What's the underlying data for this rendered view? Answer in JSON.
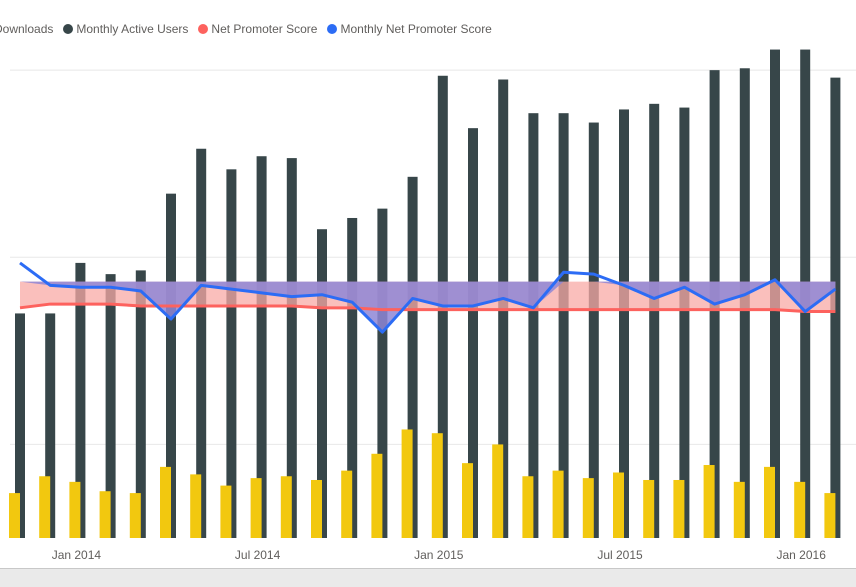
{
  "chart_data": {
    "type": "bar",
    "x_tick_labels": [
      "Jan 2014",
      "Jul 2014",
      "Jan 2015",
      "Jul 2015",
      "Jan 2016"
    ],
    "legend": [
      {
        "label": "Downloads",
        "color": "#F2C80F"
      },
      {
        "label": "Monthly Active Users",
        "color": "#374649"
      },
      {
        "label": "Net Promoter Score",
        "color": "#FD625E"
      },
      {
        "label": "Monthly Net Promoter Score",
        "color": "#2C6CF5"
      }
    ],
    "grid": true,
    "y_axis_visible": false,
    "band_colors": {
      "above": "#8E86D6",
      "below": "#F8A9A6"
    },
    "series": [
      {
        "name": "Monthly Active Users",
        "values": [
          1.2,
          1.2,
          1.47,
          1.41,
          1.43,
          1.84,
          2.08,
          1.97,
          2.04,
          2.03,
          1.65,
          1.71,
          1.76,
          1.93,
          2.47,
          2.19,
          2.45,
          2.27,
          2.27,
          2.22,
          2.29,
          2.32,
          2.3,
          2.5,
          2.51,
          2.61,
          2.61,
          2.46
        ]
      },
      {
        "name": "Downloads",
        "values": [
          0.24,
          0.33,
          0.3,
          0.25,
          0.24,
          0.38,
          0.34,
          0.28,
          0.32,
          0.33,
          0.31,
          0.36,
          0.45,
          0.58,
          0.56,
          0.4,
          0.5,
          0.33,
          0.36,
          0.32,
          0.35,
          0.31,
          0.31,
          0.39,
          0.3,
          0.38,
          0.3,
          0.24
        ]
      },
      {
        "name": "Net Promoter Score",
        "values": [
          1.23,
          1.25,
          1.25,
          1.25,
          1.24,
          1.24,
          1.24,
          1.24,
          1.24,
          1.24,
          1.23,
          1.23,
          1.22,
          1.22,
          1.22,
          1.22,
          1.22,
          1.22,
          1.22,
          1.22,
          1.22,
          1.22,
          1.22,
          1.22,
          1.22,
          1.22,
          1.21,
          1.21
        ]
      },
      {
        "name": "Monthly Net Promoter Score",
        "values": [
          1.47,
          1.35,
          1.34,
          1.34,
          1.32,
          1.17,
          1.35,
          1.33,
          1.31,
          1.29,
          1.3,
          1.26,
          1.1,
          1.28,
          1.24,
          1.24,
          1.28,
          1.23,
          1.42,
          1.41,
          1.35,
          1.28,
          1.34,
          1.25,
          1.3,
          1.38,
          1.21,
          1.33
        ]
      }
    ],
    "band_top_value": 1.37,
    "ylim": [
      0,
      2.8
    ]
  }
}
